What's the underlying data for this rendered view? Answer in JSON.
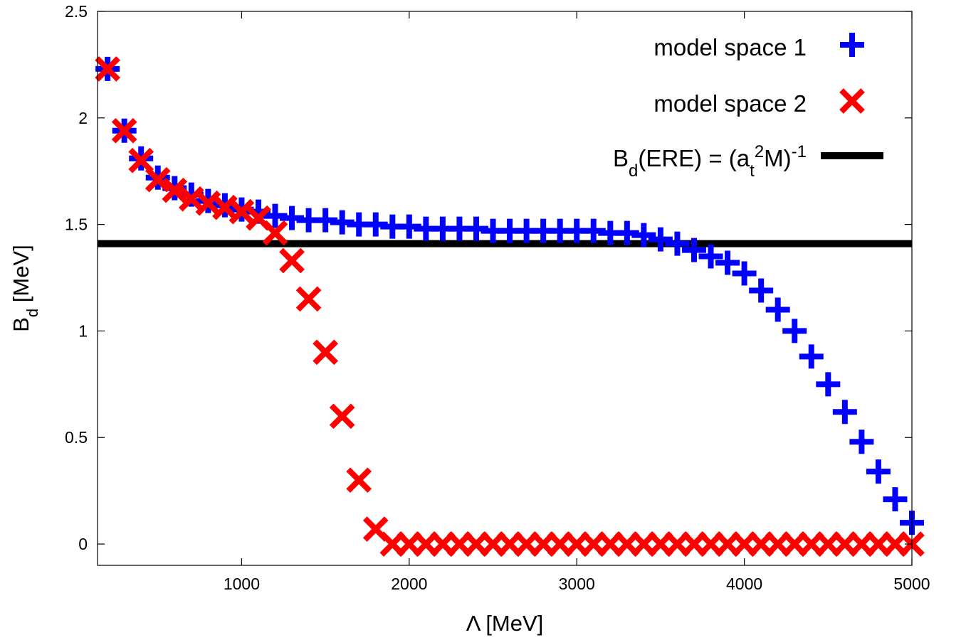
{
  "chart_data": {
    "type": "scatter",
    "xlabel": "Λ [MeV]",
    "ylabel": "B_d [MeV]",
    "ylabel_parts": {
      "main": "B",
      "sub": "d",
      "rest": " [MeV]"
    },
    "xlim": [
      140,
      5000
    ],
    "ylim": [
      -0.1,
      2.5
    ],
    "x_ticks": [
      1000,
      2000,
      3000,
      4000,
      5000
    ],
    "x_tick_labels": [
      "1000",
      "2000",
      "3000",
      "4000",
      "5000"
    ],
    "y_ticks": [
      0,
      0.5,
      1,
      1.5,
      2,
      2.5
    ],
    "y_tick_labels": [
      "0",
      "0.5",
      "1",
      "1.5",
      "2",
      "2.5"
    ],
    "grid": false,
    "legend_position": "top-right",
    "legend": [
      {
        "label": "model space 1",
        "marker": "plus",
        "color": "#0000ff"
      },
      {
        "label": "model space 2",
        "marker": "cross",
        "color": "#ff0000"
      },
      {
        "label": "B_d(ERE) = (a_t^2 M)^-1",
        "marker": "line",
        "color": "#000000",
        "label_parts": {
          "a": "B",
          "b": "d",
          "c": "(ERE) = (a",
          "d": "t",
          "e": "2",
          "f": "M)",
          "g": "-1"
        }
      }
    ],
    "reference_line": {
      "name": "B_d(ERE)",
      "y": 1.41,
      "color": "#000000"
    },
    "series": [
      {
        "name": "model space 1",
        "marker": "plus",
        "color": "#0000ff",
        "points": [
          [
            200,
            2.23
          ],
          [
            300,
            1.94
          ],
          [
            400,
            1.81
          ],
          [
            500,
            1.72
          ],
          [
            600,
            1.67
          ],
          [
            700,
            1.64
          ],
          [
            800,
            1.61
          ],
          [
            900,
            1.59
          ],
          [
            1000,
            1.57
          ],
          [
            1100,
            1.56
          ],
          [
            1200,
            1.54
          ],
          [
            1300,
            1.53
          ],
          [
            1400,
            1.52
          ],
          [
            1500,
            1.52
          ],
          [
            1600,
            1.51
          ],
          [
            1700,
            1.5
          ],
          [
            1800,
            1.5
          ],
          [
            1900,
            1.49
          ],
          [
            2000,
            1.49
          ],
          [
            2100,
            1.48
          ],
          [
            2200,
            1.48
          ],
          [
            2300,
            1.48
          ],
          [
            2400,
            1.48
          ],
          [
            2500,
            1.47
          ],
          [
            2600,
            1.47
          ],
          [
            2700,
            1.47
          ],
          [
            2800,
            1.47
          ],
          [
            2900,
            1.47
          ],
          [
            3000,
            1.47
          ],
          [
            3100,
            1.47
          ],
          [
            3200,
            1.46
          ],
          [
            3300,
            1.46
          ],
          [
            3400,
            1.45
          ],
          [
            3500,
            1.43
          ],
          [
            3600,
            1.41
          ],
          [
            3700,
            1.38
          ],
          [
            3800,
            1.35
          ],
          [
            3900,
            1.32
          ],
          [
            4000,
            1.27
          ],
          [
            4100,
            1.19
          ],
          [
            4200,
            1.1
          ],
          [
            4300,
            1.0
          ],
          [
            4400,
            0.88
          ],
          [
            4500,
            0.75
          ],
          [
            4600,
            0.62
          ],
          [
            4700,
            0.48
          ],
          [
            4800,
            0.34
          ],
          [
            4900,
            0.21
          ],
          [
            5000,
            0.1
          ]
        ]
      },
      {
        "name": "model space 2",
        "marker": "cross",
        "color": "#ff0000",
        "points": [
          [
            200,
            2.23
          ],
          [
            300,
            1.94
          ],
          [
            400,
            1.8
          ],
          [
            500,
            1.71
          ],
          [
            600,
            1.66
          ],
          [
            700,
            1.62
          ],
          [
            800,
            1.6
          ],
          [
            900,
            1.58
          ],
          [
            1000,
            1.56
          ],
          [
            1100,
            1.53
          ],
          [
            1200,
            1.46
          ],
          [
            1300,
            1.33
          ],
          [
            1400,
            1.15
          ],
          [
            1500,
            0.9
          ],
          [
            1600,
            0.6
          ],
          [
            1700,
            0.3
          ],
          [
            1800,
            0.07
          ],
          [
            1900,
            0
          ],
          [
            2000,
            0
          ],
          [
            2100,
            0
          ],
          [
            2200,
            0
          ],
          [
            2300,
            0
          ],
          [
            2400,
            0
          ],
          [
            2500,
            0
          ],
          [
            2600,
            0
          ],
          [
            2700,
            0
          ],
          [
            2800,
            0
          ],
          [
            2900,
            0
          ],
          [
            3000,
            0
          ],
          [
            3100,
            0
          ],
          [
            3200,
            0
          ],
          [
            3300,
            0
          ],
          [
            3400,
            0
          ],
          [
            3500,
            0
          ],
          [
            3600,
            0
          ],
          [
            3700,
            0
          ],
          [
            3800,
            0
          ],
          [
            3900,
            0
          ],
          [
            4000,
            0
          ],
          [
            4100,
            0
          ],
          [
            4200,
            0
          ],
          [
            4300,
            0
          ],
          [
            4400,
            0
          ],
          [
            4500,
            0
          ],
          [
            4600,
            0
          ],
          [
            4700,
            0
          ],
          [
            4800,
            0
          ],
          [
            4900,
            0
          ],
          [
            5000,
            0
          ]
        ]
      }
    ]
  }
}
